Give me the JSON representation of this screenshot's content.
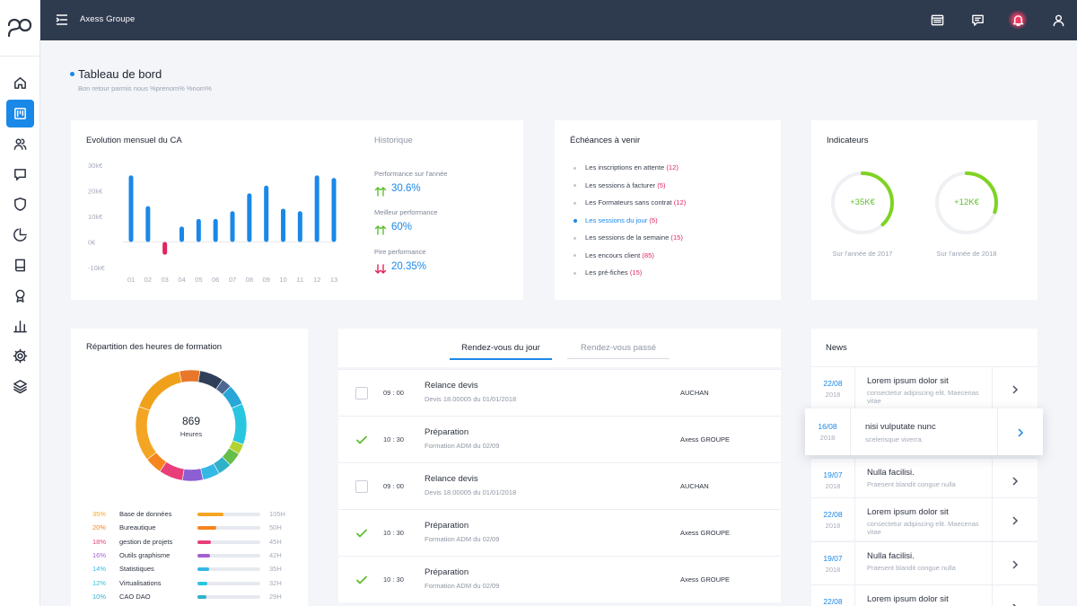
{
  "app": {
    "title": "Axess Groupe"
  },
  "sidebar": {
    "items": [
      {
        "name": "home-icon"
      },
      {
        "name": "dashboard-icon",
        "active": true
      },
      {
        "name": "users-icon"
      },
      {
        "name": "chat-icon"
      },
      {
        "name": "shield-icon"
      },
      {
        "name": "pie-chart-icon"
      },
      {
        "name": "book-icon"
      },
      {
        "name": "award-icon"
      },
      {
        "name": "bar-chart-icon"
      },
      {
        "name": "gear-icon"
      },
      {
        "name": "layers-icon"
      }
    ]
  },
  "topbar": {
    "icons": [
      "calendar-icon",
      "message-icon",
      "bell-icon",
      "user-icon"
    ]
  },
  "header": {
    "title": "Tableau de bord",
    "subtitle": "Bon retour parmis nous %prenom% %nom%"
  },
  "ca": {
    "title": "Evolution mensuel du CA",
    "history_title": "Historique",
    "perf": [
      {
        "label": "Performance sur l'année",
        "value": "30.6%",
        "trend": "up"
      },
      {
        "label": "Meilleur performance",
        "value": "60%",
        "trend": "up"
      },
      {
        "label": "Pire performance",
        "value": "20.35%",
        "trend": "down"
      }
    ]
  },
  "chart_data": {
    "type": "bar",
    "categories": [
      "01",
      "02",
      "03",
      "04",
      "05",
      "06",
      "07",
      "08",
      "09",
      "10",
      "11",
      "12",
      "13"
    ],
    "values": [
      26,
      14,
      -5,
      6,
      9,
      9,
      12,
      19,
      22,
      13,
      12,
      26,
      25
    ],
    "yticks": [
      "30k€",
      "20k€",
      "10k€",
      "0€",
      "-10k€"
    ],
    "ylim": [
      -10,
      30
    ],
    "colors": {
      "positive": "#1a88e8",
      "negative": "#e0245e"
    }
  },
  "echeances": {
    "title": "Échéances à venir",
    "items": [
      {
        "label": "Les inscriptions en attente",
        "count": "(12)",
        "active": false
      },
      {
        "label": "Les sessions à facturer",
        "count": "(5)",
        "active": false
      },
      {
        "label": "Les Formateurs sans contrat",
        "count": "(12)",
        "active": false
      },
      {
        "label": "Les sessions du jour",
        "count": "(5)",
        "active": true
      },
      {
        "label": "Les sessions de la semaine",
        "count": "(15)",
        "active": false
      },
      {
        "label": "Les encours client",
        "count": "(85)",
        "active": false
      },
      {
        "label": "Les pré-fiches",
        "count": "(15)",
        "active": false
      }
    ]
  },
  "indicateurs": {
    "title": "Indicateurs",
    "rings": [
      {
        "value": "+35K€",
        "caption": "Sur l'année de 2017",
        "progress": 0.38
      },
      {
        "value": "+12K€",
        "caption": "Sur l'année de 2018",
        "progress": 0.3
      }
    ],
    "ring_color": "#7ed321"
  },
  "repartition": {
    "title": "Répartition des heures de formation",
    "total": "869",
    "unit": "Heures",
    "segments": [
      {
        "color": "#f0a11c",
        "value": 16
      },
      {
        "color": "#e8772a",
        "value": 6
      },
      {
        "color": "#2f3e59",
        "value": 7
      },
      {
        "color": "#4b6892",
        "value": 3
      },
      {
        "color": "#27a6d8",
        "value": 6
      },
      {
        "color": "#29c6e0",
        "value": 12
      },
      {
        "color": "#b3d234",
        "value": 3
      },
      {
        "color": "#65be4a",
        "value": 4
      },
      {
        "color": "#2fb1ca",
        "value": 4
      },
      {
        "color": "#35b8e6",
        "value": 5
      },
      {
        "color": "#8c5fd3",
        "value": 6
      },
      {
        "color": "#e83e7a",
        "value": 7
      },
      {
        "color": "#f6851f",
        "value": 5
      },
      {
        "color": "#f5a524",
        "value": 16
      }
    ],
    "legend": [
      {
        "pct": "35%",
        "name": "Base de données",
        "hours": "105H",
        "color": "#f5a524",
        "fill": 0.42
      },
      {
        "pct": "20%",
        "name": "Bureautique",
        "hours": "50H",
        "color": "#f6851f",
        "fill": 0.3
      },
      {
        "pct": "18%",
        "name": "gestion de projets",
        "hours": "45H",
        "color": "#e83e7a",
        "fill": 0.22
      },
      {
        "pct": "16%",
        "name": "Outils graphisme",
        "hours": "42H",
        "color": "#a45fd3",
        "fill": 0.2
      },
      {
        "pct": "14%",
        "name": "Statistiques",
        "hours": "35H",
        "color": "#35b8e6",
        "fill": 0.18
      },
      {
        "pct": "12%",
        "name": "Virtualisations",
        "hours": "32H",
        "color": "#29c6e0",
        "fill": 0.16
      },
      {
        "pct": "10%",
        "name": "CAO DAO",
        "hours": "29H",
        "color": "#2fb1ca",
        "fill": 0.14
      }
    ]
  },
  "rendezvous": {
    "tabs": [
      {
        "label": "Rendez-vous du jour",
        "active": true
      },
      {
        "label": "Rendez-vous passé",
        "active": false
      }
    ],
    "rows": [
      {
        "done": false,
        "time": "09 : 00",
        "title": "Relance devis",
        "sub": "Devis 18.00005 du 01/01/2018",
        "client": "AUCHAN"
      },
      {
        "done": true,
        "time": "10 : 30",
        "title": "Préparation",
        "sub": "Formation ADM du 02/09",
        "client": "Axess GROUPE"
      },
      {
        "done": false,
        "time": "09 : 00",
        "title": "Relance devis",
        "sub": "Devis 18.00005 du 01/01/2018",
        "client": "AUCHAN"
      },
      {
        "done": true,
        "time": "10 : 30",
        "title": "Préparation",
        "sub": "Formation ADM du 02/09",
        "client": "Axess GROUPE"
      },
      {
        "done": true,
        "time": "10 : 30",
        "title": "Préparation",
        "sub": "Formation ADM du 02/09",
        "client": "Axess GROUPE"
      }
    ]
  },
  "news": {
    "title": "News",
    "items": [
      {
        "day": "22/08",
        "year": "2018",
        "title": "Lorem ipsum dolor sit",
        "body": "consectetur adipiscing elit. Maecenas vitae"
      },
      {
        "day": "16/08",
        "year": "2018",
        "title": "nisi vulputate nunc",
        "body": "scelerisque viverra.",
        "highlighted": true
      },
      {
        "day": "19/07",
        "year": "2018",
        "title": "Nulla facilisi.",
        "body": "Praesent blandit congue nulla"
      },
      {
        "day": "22/08",
        "year": "2018",
        "title": "Lorem ipsum dolor sit",
        "body": "consectetur adipiscing elit. Maecenas vitae"
      },
      {
        "day": "19/07",
        "year": "2018",
        "title": "Nulla facilisi.",
        "body": "Praesent blandit congue nulla"
      },
      {
        "day": "22/08",
        "year": "",
        "title": "Lorem ipsum dolor sit",
        "body": ""
      }
    ]
  }
}
